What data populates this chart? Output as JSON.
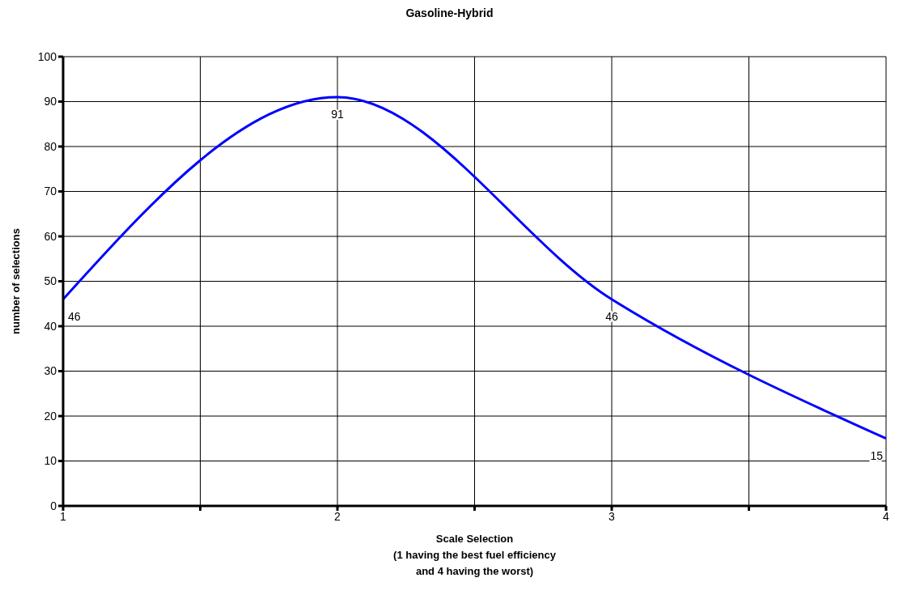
{
  "chart_data": {
    "type": "line",
    "title": "Gasoline-Hybrid",
    "xlabel": "Scale Selection\n(1 having the best fuel efficiency\nand 4 having the worst)",
    "ylabel": "number of selections",
    "x": [
      1,
      2,
      3,
      4
    ],
    "series": [
      {
        "color": "#0000ff",
        "values": [
          46,
          91,
          46,
          15
        ]
      }
    ],
    "xlim": [
      1,
      4
    ],
    "xticks": [
      1,
      {
        "value": 1.5,
        "label": null
      },
      2,
      {
        "value": 2.5,
        "label": null
      },
      3,
      {
        "value": 3.5,
        "label": null
      },
      4
    ],
    "ylim": [
      0,
      100
    ],
    "yticks": [
      0,
      10,
      20,
      30,
      40,
      50,
      60,
      70,
      80,
      90,
      100
    ],
    "grid": true,
    "data_labels": true,
    "marker": "none",
    "line_style": "solid",
    "legend": false
  }
}
